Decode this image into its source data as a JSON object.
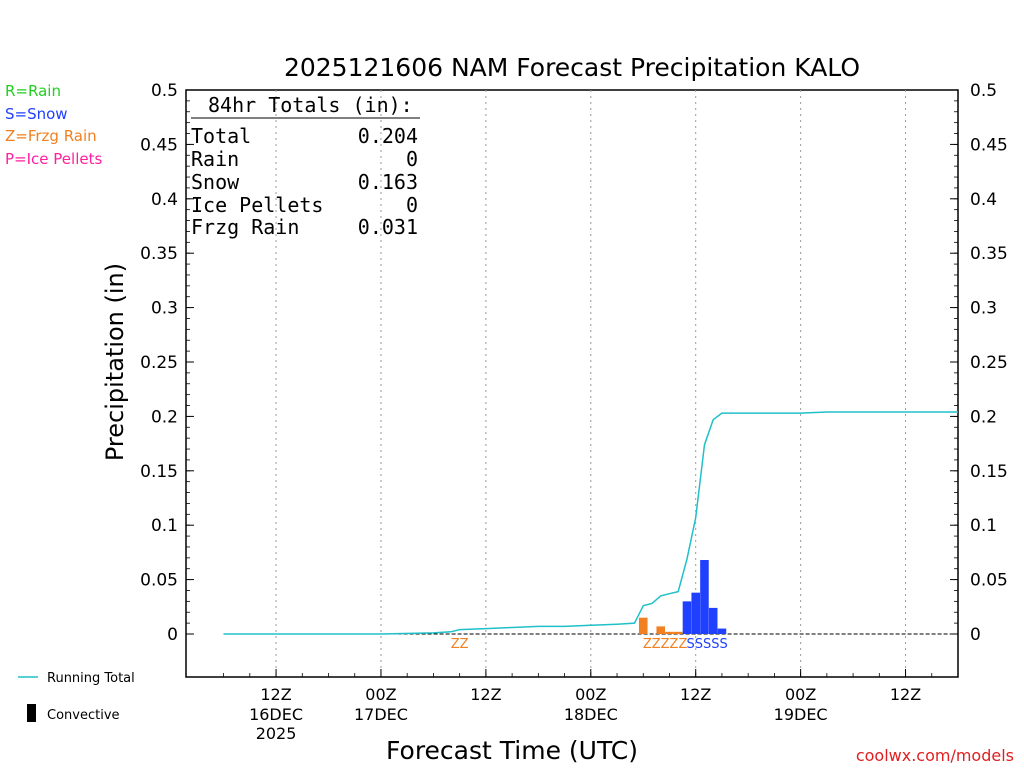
{
  "chart_data": {
    "type": "bar",
    "title": "2025121606 NAM Forecast Precipitation KALO",
    "xlabel": "Forecast Time (UTC)",
    "ylabel": "Precipitation (in)",
    "ylim": [
      0,
      0.5
    ],
    "y_ticks": [
      "0",
      "0.05",
      "0.1",
      "0.15",
      "0.2",
      "0.25",
      "0.3",
      "0.35",
      "0.4",
      "0.45",
      "0.5"
    ],
    "y_tick_values": [
      0,
      0.05,
      0.1,
      0.15,
      0.2,
      0.25,
      0.3,
      0.35,
      0.4,
      0.45,
      0.5
    ],
    "xlim_hours": [
      -4.3,
      84
    ],
    "x_ticks": [
      {
        "hour": 6,
        "label": "12Z",
        "sub1": "16DEC",
        "sub2": "2025"
      },
      {
        "hour": 18,
        "label": "00Z",
        "sub1": "17DEC",
        "sub2": ""
      },
      {
        "hour": 30,
        "label": "12Z",
        "sub1": "",
        "sub2": ""
      },
      {
        "hour": 42,
        "label": "00Z",
        "sub1": "18DEC",
        "sub2": ""
      },
      {
        "hour": 54,
        "label": "12Z",
        "sub1": "",
        "sub2": ""
      },
      {
        "hour": 66,
        "label": "00Z",
        "sub1": "19DEC",
        "sub2": ""
      },
      {
        "hour": 78,
        "label": "12Z",
        "sub1": "",
        "sub2": ""
      }
    ],
    "grid": "vertical-dotted",
    "legend": {
      "rain": "R=Rain",
      "snow": "S=Snow",
      "frzg": "Z=Frzg Rain",
      "ice": "P=Ice Pellets",
      "running_total": "Running Total",
      "convective": "Convective"
    },
    "totals_box": {
      "header": "84hr Totals (in):",
      "rows": [
        {
          "label": "Total",
          "value": "0.204"
        },
        {
          "label": "Rain",
          "value": "0"
        },
        {
          "label": "Snow",
          "value": "0.163"
        },
        {
          "label": "Ice Pellets",
          "value": "0"
        },
        {
          "label": "Frzg Rain",
          "value": "0.031"
        }
      ]
    },
    "series": [
      {
        "name": "Running Total",
        "type": "line",
        "color": "#20c0c8",
        "x": [
          0,
          10,
          18,
          24,
          26,
          27,
          30,
          33,
          36,
          39,
          42,
          45,
          47,
          48,
          49,
          50,
          51,
          52,
          53,
          54,
          55,
          56,
          57,
          60,
          66,
          69,
          72,
          78,
          84
        ],
        "y": [
          0,
          0,
          0,
          0.001,
          0.002,
          0.004,
          0.005,
          0.006,
          0.007,
          0.007,
          0.008,
          0.009,
          0.01,
          0.026,
          0.028,
          0.035,
          0.037,
          0.039,
          0.069,
          0.107,
          0.174,
          0.197,
          0.203,
          0.203,
          0.203,
          0.204,
          0.204,
          0.204,
          0.204
        ]
      },
      {
        "name": "Frzg Rain",
        "type": "bar",
        "color": "#f08020",
        "x": [
          48,
          50,
          51,
          52
        ],
        "y": [
          0.015,
          0.007,
          0.002,
          0.002
        ]
      },
      {
        "name": "Snow",
        "type": "bar",
        "color": "#2040ff",
        "x": [
          53,
          54,
          55,
          56,
          57
        ],
        "y": [
          0.03,
          0.038,
          0.068,
          0.024,
          0.005
        ]
      }
    ],
    "ptype_markers": [
      {
        "hour": 27,
        "text": "ZZ",
        "kind": "frzg"
      },
      {
        "hour": 50.5,
        "text": "ZZZZZ",
        "kind": "frzg"
      },
      {
        "hour": 55.3,
        "text": "SSSSS",
        "kind": "snow"
      }
    ],
    "colors": {
      "rain": "#20d020",
      "snow": "#2040ff",
      "frzg": "#f08020",
      "ice": "#ff20a0",
      "line": "#20c0c8",
      "watermark": "#e02020"
    },
    "watermark": "coolwx.com/models"
  }
}
